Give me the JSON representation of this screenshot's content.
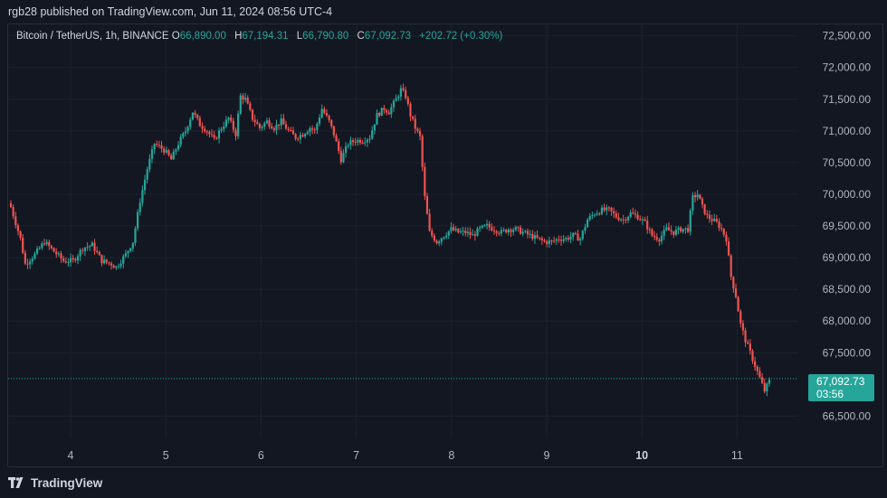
{
  "header": {
    "published": "rgb28 published on TradingView.com, Jun 11, 2024 08:56 UTC-4"
  },
  "legend": {
    "symbol": "Bitcoin / TetherUS, 1h, BINANCE",
    "o_label": "O",
    "o_value": "66,890.00",
    "h_label": "H",
    "h_value": "67,194.31",
    "l_label": "L",
    "l_value": "66,790.80",
    "c_label": "C",
    "c_value": "67,092.73",
    "change": "+202.72 (+0.30%)"
  },
  "price_tag": {
    "price": "67,092.73",
    "countdown": "03:56"
  },
  "footer": {
    "brand": "TradingView"
  },
  "colors": {
    "background": "#131722",
    "up": "#26a69a",
    "down": "#ef5350",
    "grid": "#1e222d"
  },
  "chart_data": {
    "type": "candlestick",
    "y_axis_labels": [
      "72,500.00",
      "72,000.00",
      "71,500.00",
      "71,000.00",
      "70,500.00",
      "70,000.00",
      "69,500.00",
      "69,000.00",
      "68,500.00",
      "68,000.00",
      "67,500.00",
      "66,500.00"
    ],
    "y_axis_values": [
      72500,
      72000,
      71500,
      71000,
      70500,
      70000,
      69500,
      69000,
      68500,
      68000,
      67500,
      66500
    ],
    "x_axis_labels": [
      "4",
      "5",
      "6",
      "7",
      "8",
      "9",
      "10",
      "11"
    ],
    "x_axis_bold": [
      "10"
    ],
    "ylim": [
      66150,
      72680
    ],
    "last_price": 67092.73,
    "close_path": [
      [
        0,
        69800
      ],
      [
        4,
        69300
      ],
      [
        6,
        68900
      ],
      [
        10,
        69050
      ],
      [
        14,
        69250
      ],
      [
        18,
        69100
      ],
      [
        22,
        68950
      ],
      [
        26,
        68950
      ],
      [
        30,
        69150
      ],
      [
        34,
        69200
      ],
      [
        38,
        68950
      ],
      [
        42,
        68900
      ],
      [
        44,
        68850
      ],
      [
        48,
        69050
      ],
      [
        51,
        69250
      ],
      [
        54,
        69900
      ],
      [
        57,
        70400
      ],
      [
        60,
        70800
      ],
      [
        64,
        70700
      ],
      [
        67,
        70550
      ],
      [
        70,
        70800
      ],
      [
        73,
        71000
      ],
      [
        76,
        71300
      ],
      [
        79,
        71100
      ],
      [
        82,
        71000
      ],
      [
        85,
        70850
      ],
      [
        88,
        71050
      ],
      [
        91,
        71200
      ],
      [
        94,
        70950
      ],
      [
        96,
        71550
      ],
      [
        98,
        71500
      ],
      [
        101,
        71200
      ],
      [
        104,
        71050
      ],
      [
        107,
        71150
      ],
      [
        110,
        71050
      ],
      [
        113,
        71150
      ],
      [
        116,
        71000
      ],
      [
        119,
        70900
      ],
      [
        122,
        70950
      ],
      [
        125,
        71050
      ],
      [
        127,
        71000
      ],
      [
        130,
        71350
      ],
      [
        133,
        71150
      ],
      [
        135,
        70950
      ],
      [
        138,
        70550
      ],
      [
        141,
        70800
      ],
      [
        144,
        70850
      ],
      [
        147,
        70850
      ],
      [
        150,
        70900
      ],
      [
        153,
        71250
      ],
      [
        156,
        71350
      ],
      [
        158,
        71300
      ],
      [
        161,
        71500
      ],
      [
        163,
        71650
      ],
      [
        165,
        71550
      ],
      [
        167,
        71250
      ],
      [
        169,
        71050
      ],
      [
        171,
        70900
      ],
      [
        173,
        69950
      ],
      [
        175,
        69400
      ],
      [
        178,
        69250
      ],
      [
        181,
        69350
      ],
      [
        184,
        69450
      ],
      [
        187,
        69400
      ],
      [
        190,
        69400
      ],
      [
        193,
        69350
      ],
      [
        196,
        69450
      ],
      [
        199,
        69500
      ],
      [
        202,
        69450
      ],
      [
        205,
        69400
      ],
      [
        208,
        69450
      ],
      [
        211,
        69450
      ],
      [
        214,
        69400
      ],
      [
        217,
        69350
      ],
      [
        220,
        69300
      ],
      [
        223,
        69250
      ],
      [
        226,
        69250
      ],
      [
        229,
        69300
      ],
      [
        232,
        69300
      ],
      [
        235,
        69350
      ],
      [
        238,
        69300
      ],
      [
        241,
        69600
      ],
      [
        244,
        69700
      ],
      [
        247,
        69750
      ],
      [
        250,
        69750
      ],
      [
        253,
        69650
      ],
      [
        256,
        69600
      ],
      [
        259,
        69700
      ],
      [
        262,
        69650
      ],
      [
        265,
        69550
      ],
      [
        268,
        69350
      ],
      [
        271,
        69300
      ],
      [
        274,
        69450
      ],
      [
        277,
        69400
      ],
      [
        280,
        69450
      ],
      [
        283,
        69450
      ],
      [
        285,
        69950
      ],
      [
        287,
        70000
      ],
      [
        289,
        69800
      ],
      [
        291,
        69650
      ],
      [
        293,
        69600
      ],
      [
        295,
        69550
      ],
      [
        297,
        69450
      ],
      [
        299,
        69300
      ],
      [
        301,
        68700
      ],
      [
        303,
        68400
      ],
      [
        305,
        67950
      ],
      [
        307,
        67700
      ],
      [
        309,
        67500
      ],
      [
        311,
        67300
      ],
      [
        313,
        67100
      ],
      [
        315,
        66900
      ],
      [
        317,
        67050
      ]
    ],
    "series": [
      {
        "name": "",
        "values": []
      }
    ]
  }
}
